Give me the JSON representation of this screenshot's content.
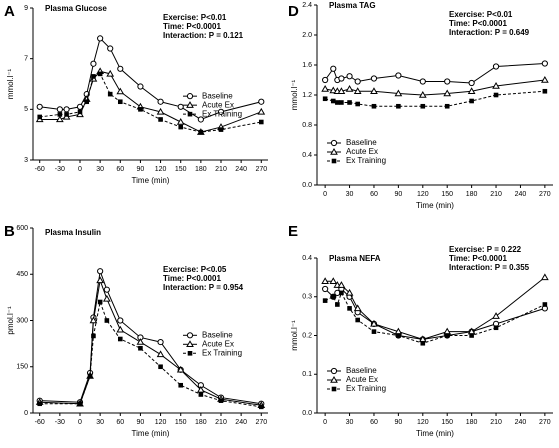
{
  "chart_data": [
    {
      "type": "line",
      "label": "A",
      "title": "Plasma Glucose",
      "ylabel": "mmol.l⁻¹",
      "xlabel": "Time (min)",
      "annotations": [
        "Exercise: P<0.01",
        "Time: P<0.0001",
        "Interaction: P = 0.121"
      ],
      "legend": "center-right",
      "x": [
        -60,
        -30,
        -20,
        0,
        10,
        20,
        30,
        45,
        60,
        90,
        120,
        150,
        180,
        210,
        270
      ],
      "xlim": [
        -70,
        280
      ],
      "xticks": [
        -60,
        -30,
        0,
        30,
        60,
        90,
        120,
        150,
        180,
        210,
        240,
        270
      ],
      "ylim": [
        3,
        9
      ],
      "yticks": [
        3,
        5,
        7,
        9
      ],
      "series": [
        {
          "name": "Baseline",
          "color": "#000000",
          "marker": "circle",
          "dash": false,
          "values": [
            5.1,
            5.0,
            5.0,
            5.1,
            5.6,
            6.8,
            7.8,
            7.4,
            6.6,
            5.9,
            5.3,
            5.1,
            4.6,
            4.9,
            5.3
          ]
        },
        {
          "name": "Acute Ex",
          "color": "#000000",
          "marker": "triangle",
          "dash": false,
          "values": [
            4.6,
            4.6,
            4.7,
            4.8,
            5.4,
            6.2,
            6.5,
            6.4,
            5.7,
            5.1,
            4.9,
            4.5,
            4.1,
            4.3,
            4.9
          ]
        },
        {
          "name": "Ex Training",
          "color": "#000000",
          "marker": "square",
          "dash": true,
          "values": [
            4.7,
            4.8,
            4.8,
            4.9,
            5.3,
            6.3,
            6.4,
            5.6,
            5.3,
            5.0,
            4.6,
            4.3,
            4.1,
            4.2,
            4.5
          ]
        }
      ]
    },
    {
      "type": "line",
      "label": "B",
      "title": "Plasma Insulin",
      "ylabel": "pmol.l⁻¹",
      "xlabel": "Time (min)",
      "annotations": [
        "Exercise: P<0.05",
        "Time: P<0.0001",
        "Interaction: P = 0.954"
      ],
      "legend": "center-right",
      "x": [
        -60,
        0,
        15,
        20,
        30,
        40,
        60,
        90,
        120,
        150,
        180,
        210,
        270
      ],
      "xlim": [
        -70,
        280
      ],
      "xticks": [
        -60,
        -30,
        0,
        30,
        60,
        90,
        120,
        150,
        180,
        210,
        240,
        270
      ],
      "ylim": [
        0,
        600
      ],
      "yticks": [
        0,
        150,
        300,
        450,
        600
      ],
      "series": [
        {
          "name": "Baseline",
          "color": "#000000",
          "marker": "circle",
          "dash": false,
          "values": [
            40,
            35,
            130,
            310,
            460,
            400,
            300,
            245,
            230,
            140,
            90,
            50,
            30
          ]
        },
        {
          "name": "Acute Ex",
          "color": "#000000",
          "marker": "triangle",
          "dash": false,
          "values": [
            35,
            30,
            120,
            300,
            430,
            370,
            270,
            230,
            190,
            140,
            75,
            45,
            25
          ]
        },
        {
          "name": "Ex Training",
          "color": "#000000",
          "marker": "square",
          "dash": true,
          "values": [
            30,
            30,
            120,
            250,
            360,
            300,
            240,
            210,
            150,
            90,
            60,
            40,
            20
          ]
        }
      ]
    },
    {
      "type": "line",
      "label": "D",
      "title": "Plasma TAG",
      "ylabel": "mmol.l⁻¹",
      "xlabel": "Time (min)",
      "annotations": [
        "Exercise: P<0.01",
        "Time: P<0.0001",
        "Interaction: P = 0.649"
      ],
      "legend": "lower-left",
      "x": [
        0,
        10,
        15,
        20,
        30,
        40,
        60,
        90,
        120,
        150,
        180,
        210,
        270
      ],
      "xlim": [
        -10,
        280
      ],
      "xticks": [
        0,
        30,
        60,
        90,
        120,
        150,
        180,
        210,
        240,
        270
      ],
      "ylim": [
        0,
        2.4
      ],
      "yticks": [
        {
          "value": 0,
          "label": "0.0"
        },
        0.4,
        0.8,
        1.2,
        1.6,
        {
          "value": 2,
          "label": "2.0"
        },
        2.4
      ],
      "series": [
        {
          "name": "Baseline",
          "color": "#000000",
          "marker": "circle",
          "dash": false,
          "values": [
            1.4,
            1.55,
            1.4,
            1.42,
            1.45,
            1.38,
            1.42,
            1.46,
            1.38,
            1.38,
            1.36,
            1.58,
            1.62
          ]
        },
        {
          "name": "Acute Ex",
          "color": "#000000",
          "marker": "triangle",
          "dash": false,
          "values": [
            1.28,
            1.26,
            1.25,
            1.25,
            1.28,
            1.25,
            1.25,
            1.22,
            1.2,
            1.22,
            1.25,
            1.32,
            1.4
          ]
        },
        {
          "name": "Ex Training",
          "color": "#000000",
          "marker": "square",
          "dash": true,
          "values": [
            1.15,
            1.12,
            1.1,
            1.1,
            1.1,
            1.08,
            1.05,
            1.05,
            1.05,
            1.05,
            1.12,
            1.2,
            1.25
          ]
        }
      ]
    },
    {
      "type": "line",
      "label": "E",
      "title": "Plasma NEFA",
      "ylabel": "mmol.l⁻¹",
      "xlabel": "Time (min)",
      "annotations": [
        "Exercise: P = 0.222",
        "Time: P<0.0001",
        "Interaction: P = 0.355"
      ],
      "legend": "lower-left",
      "x": [
        0,
        10,
        15,
        20,
        30,
        40,
        60,
        90,
        120,
        150,
        180,
        210,
        270
      ],
      "xlim": [
        -10,
        280
      ],
      "xticks": [
        0,
        30,
        60,
        90,
        120,
        150,
        180,
        210,
        240,
        270
      ],
      "ylim": [
        0,
        0.4
      ],
      "yticks": [
        {
          "value": 0,
          "label": "0.0"
        },
        0.1,
        0.2,
        0.3,
        0.4
      ],
      "series": [
        {
          "name": "Baseline",
          "color": "#000000",
          "marker": "circle",
          "dash": false,
          "values": [
            0.32,
            0.3,
            0.31,
            0.32,
            0.3,
            0.26,
            0.23,
            0.2,
            0.19,
            0.2,
            0.21,
            0.23,
            0.27
          ]
        },
        {
          "name": "Acute Ex",
          "color": "#000000",
          "marker": "triangle",
          "dash": false,
          "values": [
            0.34,
            0.34,
            0.33,
            0.33,
            0.31,
            0.27,
            0.23,
            0.21,
            0.19,
            0.21,
            0.21,
            0.25,
            0.35
          ]
        },
        {
          "name": "Ex Training",
          "color": "#000000",
          "marker": "square",
          "dash": true,
          "values": [
            0.29,
            0.3,
            0.28,
            0.31,
            0.27,
            0.24,
            0.21,
            0.2,
            0.18,
            0.2,
            0.2,
            0.22,
            0.28
          ]
        }
      ]
    }
  ]
}
